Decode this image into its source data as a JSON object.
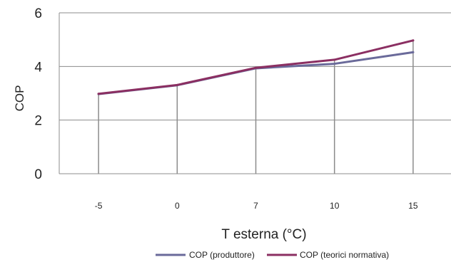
{
  "chart_data": {
    "type": "line",
    "categories": [
      "-5",
      "0",
      "7",
      "10",
      "15"
    ],
    "series": [
      {
        "name": "COP (produttore)",
        "values": [
          2.97,
          3.3,
          3.93,
          4.1,
          4.53
        ],
        "color": "#6a6a9a"
      },
      {
        "name": "COP  (teorici normativa)",
        "values": [
          2.98,
          3.31,
          3.95,
          4.25,
          4.97
        ],
        "color": "#8b2f62"
      }
    ],
    "title": "",
    "xlabel": "T esterna (°C)",
    "ylabel": "COP",
    "ylim": [
      0,
      6
    ],
    "yticks": [
      "0",
      "2",
      "4",
      "6"
    ],
    "grid": true,
    "legend": "bottom",
    "grid_color": "#8c8c8c"
  }
}
